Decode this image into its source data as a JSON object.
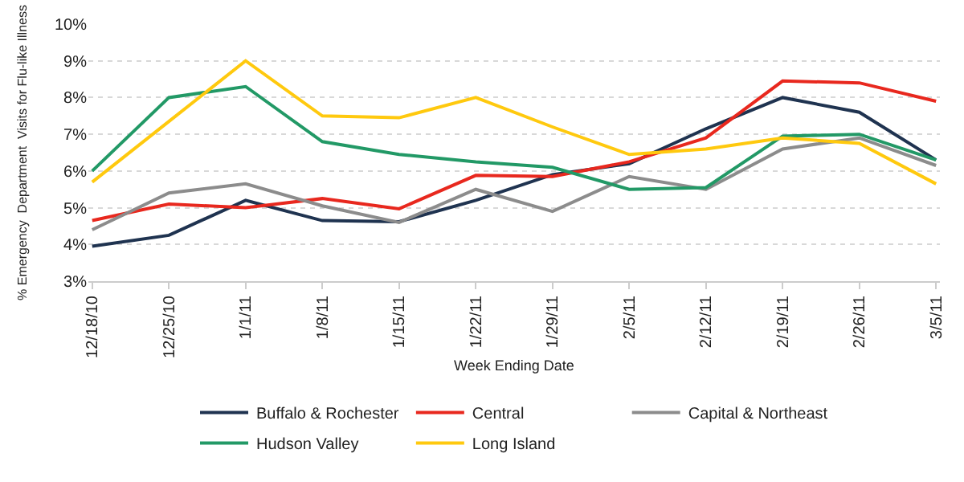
{
  "chart_data": {
    "type": "line",
    "xlabel": "Week Ending Date",
    "ylabel": "% Emergency  Department  Visits for Flu-like Illness",
    "categories": [
      "12/18/10",
      "12/25/10",
      "1/1/11",
      "1/8/11",
      "1/15/11",
      "1/22/11",
      "1/29/11",
      "2/5/11",
      "2/12/11",
      "2/19/11",
      "2/26/11",
      "3/5/11"
    ],
    "series": [
      {
        "name": "Buffalo & Rochester",
        "color": "#1f3350",
        "values": [
          3.95,
          4.25,
          5.2,
          4.65,
          4.62,
          5.2,
          5.9,
          6.2,
          7.15,
          8.0,
          7.6,
          6.3
        ]
      },
      {
        "name": "Central",
        "color": "#e8281e",
        "values": [
          4.65,
          5.1,
          5.0,
          5.25,
          4.97,
          5.88,
          5.85,
          6.25,
          6.9,
          8.45,
          8.4,
          7.9
        ]
      },
      {
        "name": "Capital & Northeast",
        "color": "#8c8c8c",
        "values": [
          4.4,
          5.4,
          5.65,
          5.05,
          4.6,
          5.5,
          4.9,
          5.85,
          5.5,
          6.6,
          6.9,
          6.15
        ]
      },
      {
        "name": "Hudson Valley",
        "color": "#229966",
        "values": [
          6.0,
          8.0,
          8.3,
          6.8,
          6.45,
          6.25,
          6.1,
          5.5,
          5.55,
          6.95,
          7.0,
          6.3
        ]
      },
      {
        "name": "Long Island",
        "color": "#ffc90e",
        "values": [
          5.7,
          7.35,
          9.0,
          7.5,
          7.45,
          8.0,
          7.2,
          6.45,
          6.6,
          6.9,
          6.75,
          5.65
        ]
      }
    ],
    "ylim": [
      3,
      10
    ],
    "yticks": [
      {
        "value": 3,
        "label": "3%"
      },
      {
        "value": 4,
        "label": "4%"
      },
      {
        "value": 5,
        "label": "5%"
      },
      {
        "value": 6,
        "label": "6%"
      },
      {
        "value": 7,
        "label": "7%"
      },
      {
        "value": 8,
        "label": "8%"
      },
      {
        "value": 9,
        "label": "9%"
      },
      {
        "value": 10,
        "label": "10%"
      }
    ],
    "grid": "y",
    "legend": "bottom",
    "marker": "none",
    "line_style": "solid"
  }
}
